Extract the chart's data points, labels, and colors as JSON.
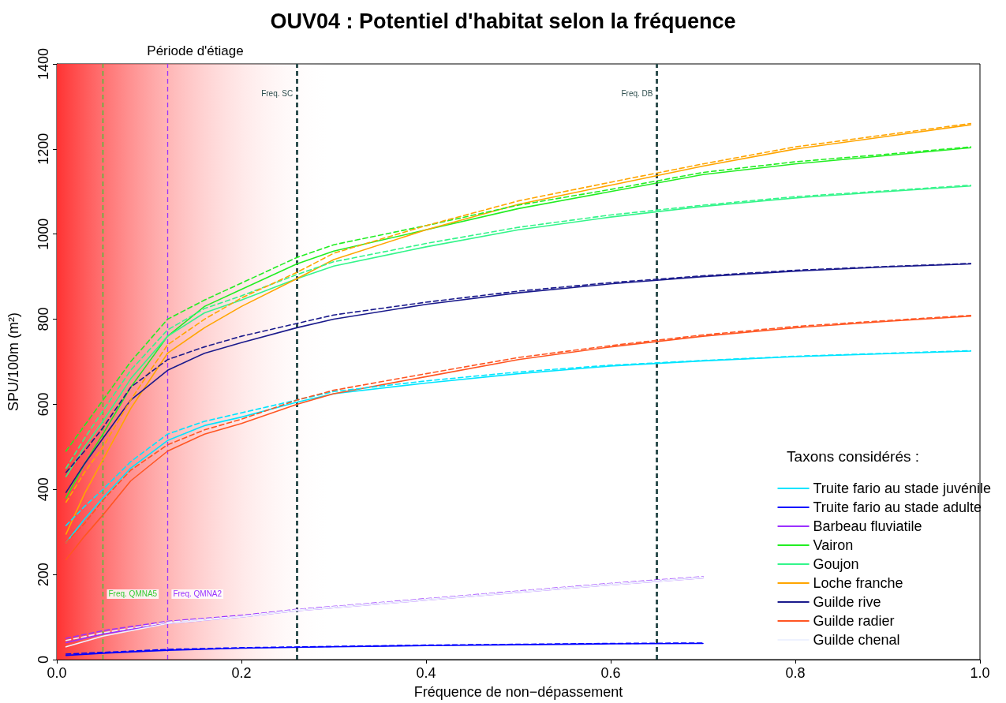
{
  "chart_data": {
    "type": "line",
    "title": "OUV04 : Potentiel d'habitat selon la fréquence",
    "xlabel": "Fréquence de non−dépassement",
    "ylabel": "SPU/100m (m²)",
    "legend_title": "Taxons considérés :",
    "legend": "bottom right",
    "grid": false,
    "marker": "none",
    "xlim": [
      0,
      1
    ],
    "xticks": [
      {
        "value": 0,
        "label": "0.0"
      },
      0.2,
      0.4,
      0.6,
      0.8,
      {
        "value": 1,
        "label": "1.0"
      }
    ],
    "ylim": [
      0,
      1400
    ],
    "yticks": [
      0,
      200,
      400,
      600,
      800,
      1000,
      1200,
      1400
    ],
    "x": [
      0.01,
      0.03,
      0.05,
      0.08,
      0.12,
      0.16,
      0.2,
      0.26,
      0.3,
      0.4,
      0.5,
      0.6,
      0.7,
      0.8,
      0.9,
      0.99
    ],
    "bands": [
      {
        "axis": "x",
        "from": 0,
        "to": 0.3,
        "label": "Période d'étiage",
        "color": "#ff3333"
      }
    ],
    "ref_lines": [
      {
        "axis": "x",
        "value": 0.05,
        "label": "Freq. QMNA5",
        "color": "#33cc33",
        "line_style": "dashed"
      },
      {
        "axis": "x",
        "value": 0.12,
        "label": "Freq. QMNA2",
        "color": "#9933ff",
        "line_style": "dashed"
      },
      {
        "axis": "x",
        "value": 0.26,
        "label": "Freq. SC",
        "color": "#2f4f4f",
        "line_style": "dashed"
      },
      {
        "axis": "x",
        "value": 0.65,
        "label": "Freq. DB",
        "color": "#2f4f4f",
        "line_style": "dashed"
      }
    ],
    "series": [
      {
        "name": "Truite fario au stade juvénile",
        "color": "#00e5ff",
        "line_style": "solid",
        "values": [
          275,
          330,
          380,
          450,
          515,
          550,
          570,
          605,
          625,
          650,
          672,
          690,
          702,
          712,
          719,
          725
        ]
      },
      {
        "name": "Truite fario au stade adulte",
        "color": "#0000ff",
        "line_style": "solid",
        "x": [
          0.01,
          0.05,
          0.12,
          0.2,
          0.3,
          0.4,
          0.5,
          0.6,
          0.7
        ],
        "values": [
          10,
          15,
          22,
          27,
          30,
          33,
          35,
          37,
          38
        ]
      },
      {
        "name": "Barbeau fluviatile",
        "color": "#9b30ff",
        "line_style": "solid",
        "x": [
          0.01,
          0.05,
          0.12,
          0.2,
          0.26,
          0.3,
          0.4,
          0.5,
          0.6,
          0.7
        ],
        "values": [
          40,
          60,
          85,
          100,
          115,
          122,
          140,
          158,
          176,
          192
        ]
      },
      {
        "name": "Vairon",
        "color": "#22ee22",
        "line_style": "solid",
        "values": [
          380,
          460,
          530,
          640,
          760,
          830,
          870,
          930,
          960,
          1010,
          1060,
          1100,
          1140,
          1165,
          1185,
          1203
        ]
      },
      {
        "name": "Goujon",
        "color": "#33f58a",
        "line_style": "solid",
        "values": [
          430,
          500,
          560,
          660,
          760,
          815,
          845,
          895,
          925,
          970,
          1010,
          1040,
          1065,
          1085,
          1100,
          1113
        ]
      },
      {
        "name": "Loche franche",
        "color": "#ffa500",
        "line_style": "solid",
        "values": [
          295,
          390,
          470,
          590,
          720,
          780,
          830,
          895,
          940,
          1010,
          1070,
          1115,
          1160,
          1200,
          1230,
          1257
        ]
      },
      {
        "name": "Guilde rive",
        "color": "#1a1a8c",
        "line_style": "solid",
        "values": [
          393,
          460,
          520,
          610,
          680,
          720,
          745,
          780,
          800,
          835,
          862,
          883,
          900,
          913,
          923,
          930
        ]
      },
      {
        "name": "Guilde radier",
        "color": "#ff5522",
        "line_style": "solid",
        "values": [
          235,
          290,
          340,
          420,
          490,
          530,
          555,
          600,
          625,
          665,
          705,
          735,
          760,
          780,
          795,
          807
        ]
      },
      {
        "name": "Guilde chenal",
        "color": "#eef2ff",
        "line_style": "solid",
        "x": [
          0.01,
          0.05,
          0.12,
          0.2,
          0.26,
          0.3,
          0.4,
          0.5,
          0.6,
          0.7
        ],
        "values": [
          30,
          55,
          85,
          100,
          115,
          122,
          140,
          158,
          176,
          192
        ]
      },
      {
        "color": "#00e5ff",
        "line_style": "dashed",
        "values": [
          315,
          360,
          400,
          465,
          530,
          560,
          580,
          610,
          630,
          655,
          676,
          692,
          703,
          713,
          720,
          726
        ]
      },
      {
        "color": "#0000ff",
        "line_style": "dashed",
        "x": [
          0.01,
          0.05,
          0.12,
          0.2,
          0.3,
          0.4,
          0.5,
          0.6,
          0.7
        ],
        "values": [
          13,
          17,
          24,
          28,
          31,
          34,
          36,
          38,
          39
        ]
      },
      {
        "color": "#9b30ff",
        "line_style": "dashed",
        "x": [
          0.01,
          0.05,
          0.12,
          0.2,
          0.26,
          0.3,
          0.4,
          0.5,
          0.6,
          0.7
        ],
        "values": [
          50,
          68,
          90,
          104,
          118,
          125,
          143,
          161,
          179,
          195
        ]
      },
      {
        "color": "#22ee22",
        "line_style": "dashed",
        "values": [
          490,
          550,
          610,
          700,
          800,
          845,
          885,
          945,
          975,
          1020,
          1068,
          1105,
          1145,
          1170,
          1188,
          1205
        ]
      },
      {
        "color": "#33f58a",
        "line_style": "dashed",
        "values": [
          450,
          520,
          585,
          680,
          775,
          825,
          855,
          905,
          935,
          978,
          1016,
          1045,
          1068,
          1088,
          1102,
          1115
        ]
      },
      {
        "color": "#ffa500",
        "line_style": "dashed",
        "values": [
          370,
          440,
          500,
          610,
          740,
          800,
          850,
          910,
          955,
          1020,
          1078,
          1122,
          1165,
          1205,
          1234,
          1260
        ]
      },
      {
        "color": "#1a1a8c",
        "line_style": "dashed",
        "values": [
          440,
          490,
          545,
          640,
          705,
          735,
          760,
          790,
          810,
          840,
          866,
          886,
          902,
          915,
          924,
          931
        ]
      },
      {
        "color": "#ff5522",
        "line_style": "dashed",
        "values": [
          275,
          320,
          375,
          445,
          505,
          540,
          565,
          610,
          633,
          672,
          710,
          738,
          763,
          783,
          797,
          809
        ]
      },
      {
        "color": "#eef2ff",
        "line_style": "dashed",
        "x": [
          0.01,
          0.05,
          0.12,
          0.2,
          0.26,
          0.3,
          0.4,
          0.5,
          0.6,
          0.7
        ],
        "values": [
          45,
          63,
          88,
          102,
          117,
          124,
          142,
          160,
          178,
          194
        ]
      }
    ]
  }
}
